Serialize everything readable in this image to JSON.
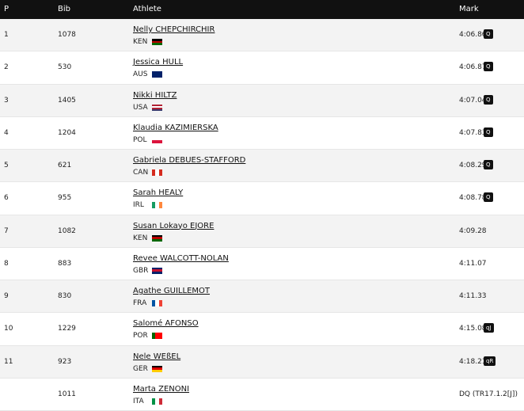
{
  "header": {
    "columns": [
      "P",
      "Bib",
      "Athlete",
      "Mark"
    ]
  },
  "table": {
    "rows": [
      {
        "place": "1",
        "bib": "1078",
        "name": "Nelly CHEPCHIRCHIR",
        "country": "KEN",
        "mark": "4:06.86",
        "qual": "Q"
      },
      {
        "place": "2",
        "bib": "530",
        "name": "Jessica HULL",
        "country": "AUS",
        "mark": "4:06.87",
        "qual": "Q"
      },
      {
        "place": "3",
        "bib": "1405",
        "name": "Nikki HILTZ",
        "country": "USA",
        "mark": "4:07.04",
        "qual": "Q"
      },
      {
        "place": "4",
        "bib": "1204",
        "name": "Klaudia KAZIMIERSKA",
        "country": "POL",
        "mark": "4:07.83",
        "qual": "Q"
      },
      {
        "place": "5",
        "bib": "621",
        "name": "Gabriela DEBUES-STAFFORD",
        "country": "CAN",
        "mark": "4:08.29",
        "qual": "Q"
      },
      {
        "place": "6",
        "bib": "955",
        "name": "Sarah HEALY",
        "country": "IRL",
        "mark": "4:08.78",
        "qual": "Q"
      },
      {
        "place": "7",
        "bib": "1082",
        "name": "Susan Lokayo EJORE",
        "country": "KEN",
        "mark": "4:09.28",
        "qual": null
      },
      {
        "place": "8",
        "bib": "883",
        "name": "Revee WALCOTT-NOLAN",
        "country": "GBR",
        "mark": "4:11.07",
        "qual": null
      },
      {
        "place": "9",
        "bib": "830",
        "name": "Agathe GUILLEMOT",
        "country": "FRA",
        "mark": "4:11.33",
        "qual": null
      },
      {
        "place": "10",
        "bib": "1229",
        "name": "Salomé AFONSO",
        "country": "POR",
        "mark": "4:15.08",
        "qual": "qJ"
      },
      {
        "place": "11",
        "bib": "923",
        "name": "Nele WEßEL",
        "country": "GER",
        "mark": "4:18.21",
        "qual": "qR"
      },
      {
        "place": null,
        "bib": "1011",
        "name": "Marta ZENONI",
        "country": "ITA",
        "mark": "DQ (TR17.1.2[J])",
        "qual": null
      }
    ]
  }
}
